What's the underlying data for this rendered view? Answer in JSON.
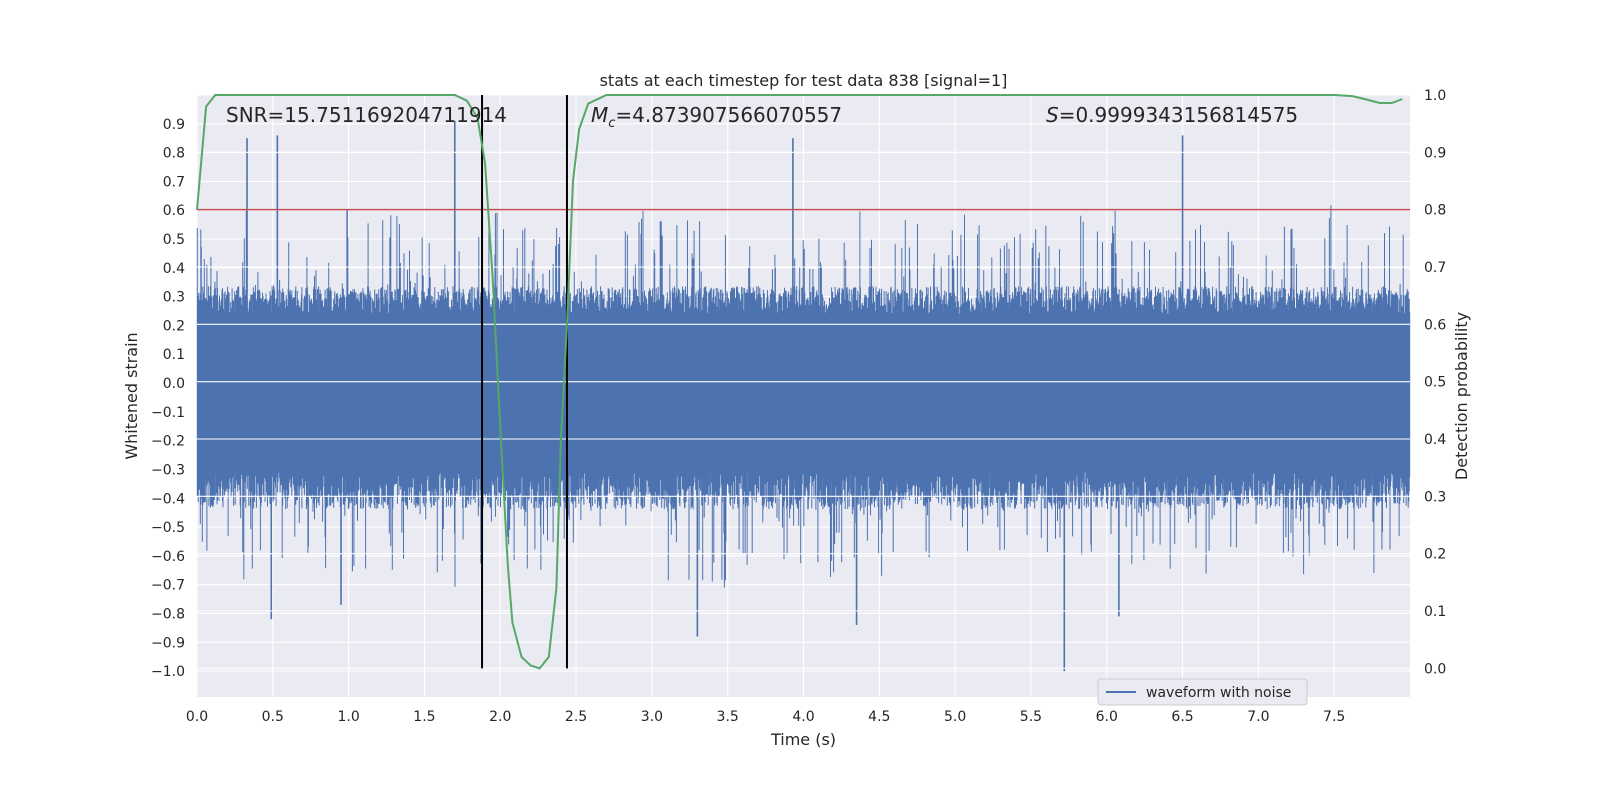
{
  "chart_data": {
    "type": "line",
    "title": "stats at each timestep for test data 838 [signal=1]",
    "xlabel": "Time (s)",
    "ylabel": "Whitened strain",
    "y2label": "Detection probability",
    "xlim": [
      0.0,
      8.0
    ],
    "ylim": [
      -1.09,
      1.0
    ],
    "y2lim": [
      -0.05,
      1.0
    ],
    "x_ticks": [
      0.0,
      0.5,
      1.0,
      1.5,
      2.0,
      2.5,
      3.0,
      3.5,
      4.0,
      4.5,
      5.0,
      5.5,
      6.0,
      6.5,
      7.0,
      7.5
    ],
    "x_tick_labels": [
      "0.0",
      "0.5",
      "1.0",
      "1.5",
      "2.0",
      "2.5",
      "3.0",
      "3.5",
      "4.0",
      "4.5",
      "5.0",
      "5.5",
      "6.0",
      "6.5",
      "7.0",
      "7.5"
    ],
    "y_ticks": [
      0.9,
      0.8,
      0.7,
      0.6,
      0.5,
      0.4,
      0.3,
      0.2,
      0.1,
      0.0,
      -0.1,
      -0.2,
      -0.3,
      -0.4,
      -0.5,
      -0.6,
      -0.7,
      -0.8,
      -0.9,
      -1.0
    ],
    "y_tick_labels": [
      "0.9",
      "0.8",
      "0.7",
      "0.6",
      "0.5",
      "0.4",
      "0.3",
      "0.2",
      "0.1",
      "0.0",
      "−0.1",
      "−0.2",
      "−0.3",
      "−0.4",
      "−0.5",
      "−0.6",
      "−0.7",
      "−0.8",
      "−0.9",
      "−1.0"
    ],
    "y2_ticks": [
      1.0,
      0.9,
      0.8,
      0.7,
      0.6,
      0.5,
      0.4,
      0.3,
      0.2,
      0.1,
      0.0
    ],
    "y2_tick_labels": [
      "1.0",
      "0.9",
      "0.8",
      "0.7",
      "0.6",
      "0.5",
      "0.4",
      "0.3",
      "0.2",
      "0.1",
      "0.0"
    ],
    "grid": true,
    "legend": {
      "placement": "lower-center-right",
      "entries": [
        {
          "label": "waveform with noise",
          "color": "#4c72b0"
        }
      ]
    },
    "annotations": {
      "snr": "SNR=15.751169204711914",
      "mc_symbol": "M",
      "mc_sub": "c",
      "mc_value": "=4.873907566070557",
      "s_symbol": "S",
      "s_value": "=0.9999343156814575"
    },
    "threshold_line": {
      "axis": "y2",
      "value": 0.8,
      "color": "#c44e52"
    },
    "vertical_lines": [
      {
        "x": 1.88,
        "color": "#000000"
      },
      {
        "x": 2.44,
        "color": "#000000"
      }
    ],
    "strain_series": {
      "name": "waveform with noise",
      "color": "#4c72b0",
      "envelope_core": {
        "upper": 0.33,
        "lower": -0.43
      },
      "notable_peaks": [
        {
          "x": 0.33,
          "y": 0.85
        },
        {
          "x": 0.53,
          "y": 0.86
        },
        {
          "x": 1.7,
          "y": 0.91
        },
        {
          "x": 3.93,
          "y": 0.85
        },
        {
          "x": 6.5,
          "y": 0.86
        },
        {
          "x": 0.49,
          "y": -0.82
        },
        {
          "x": 0.95,
          "y": -0.77
        },
        {
          "x": 3.3,
          "y": -0.88
        },
        {
          "x": 4.35,
          "y": -0.84
        },
        {
          "x": 5.72,
          "y": -1.0
        },
        {
          "x": 6.08,
          "y": -0.81
        }
      ]
    },
    "probability_series": {
      "name": "detection probability",
      "color": "#55a868",
      "x": [
        0.0,
        0.06,
        0.12,
        0.2,
        0.5,
        1.0,
        1.5,
        1.7,
        1.78,
        1.85,
        1.9,
        1.95,
        2.0,
        2.05,
        2.08,
        2.14,
        2.2,
        2.26,
        2.32,
        2.37,
        2.4,
        2.44,
        2.48,
        2.52,
        2.58,
        2.7,
        3.0,
        4.0,
        5.0,
        6.0,
        7.0,
        7.5,
        7.62,
        7.7,
        7.8,
        7.88,
        7.95
      ],
      "y": [
        0.8,
        0.98,
        1.0,
        1.0,
        1.0,
        1.0,
        1.0,
        1.0,
        0.99,
        0.96,
        0.88,
        0.68,
        0.42,
        0.18,
        0.08,
        0.02,
        0.005,
        0.0,
        0.02,
        0.14,
        0.4,
        0.6,
        0.85,
        0.94,
        0.985,
        1.0,
        1.0,
        1.0,
        1.0,
        1.0,
        1.0,
        1.0,
        0.998,
        0.993,
        0.986,
        0.986,
        0.993
      ]
    }
  }
}
